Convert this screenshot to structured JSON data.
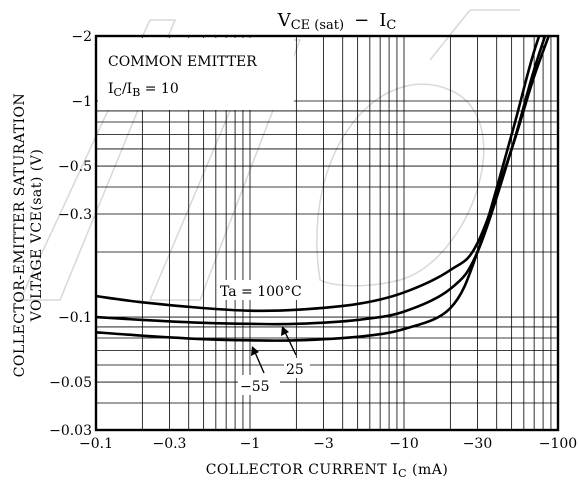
{
  "chart_data": {
    "type": "line",
    "title": "VCE (sat) − IC",
    "title_parts": {
      "a": "V",
      "a_sub": "CE (sat)",
      "dash": "−",
      "b": "I",
      "b_sub": "C"
    },
    "xlabel": "COLLECTOR   CURRENT   IC (mA)",
    "xlabel_parts": {
      "text": "COLLECTOR   CURRENT   I",
      "sub": "C",
      "unit": " (mA)"
    },
    "ylabel_line1": "COLLECTOR-EMITTER SATURATION",
    "ylabel_line2": "VOLTAGE   VCE(sat)   (V)",
    "x_scale": "log",
    "y_scale": "log",
    "xlim": [
      -0.1,
      -100
    ],
    "ylim": [
      -0.03,
      -2
    ],
    "grid": true,
    "x_ticks": [
      "-0.1",
      "-0.3",
      "-1",
      "-3",
      "-10",
      "-30",
      "-100"
    ],
    "y_ticks": [
      "-2",
      "-1",
      "-0.5",
      "-0.3",
      "-0.1",
      "-0.05",
      "-0.03"
    ],
    "annotations": {
      "common_emitter": "COMMON EMITTER",
      "ratio": "IC/IB = 10",
      "ratio_parts": {
        "a": "I",
        "a_sub": "C",
        "slash": "/I",
        "b_sub": "B",
        "rest": " = 10"
      },
      "ta_label": "Ta = 100°C",
      "label_25": "25",
      "label_m55": "−55"
    },
    "series": [
      {
        "name": "Ta = 100°C",
        "x": [
          -0.1,
          -0.2,
          -0.5,
          -1,
          -2,
          -5,
          -10,
          -20,
          -30,
          -50,
          -70,
          -100
        ],
        "y": [
          -0.125,
          -0.117,
          -0.11,
          -0.107,
          -0.108,
          -0.115,
          -0.13,
          -0.165,
          -0.22,
          -0.6,
          -1.3,
          -2.6
        ]
      },
      {
        "name": "25",
        "x": [
          -0.1,
          -0.2,
          -0.5,
          -1,
          -2,
          -5,
          -10,
          -20,
          -30,
          -50,
          -70,
          -100
        ],
        "y": [
          -0.1,
          -0.097,
          -0.094,
          -0.093,
          -0.093,
          -0.097,
          -0.106,
          -0.135,
          -0.2,
          -0.6,
          -1.4,
          -3.0
        ]
      },
      {
        "name": "−55",
        "x": [
          -0.1,
          -0.2,
          -0.5,
          -1,
          -2,
          -5,
          -10,
          -20,
          -30,
          -50,
          -70,
          -100
        ],
        "y": [
          -0.085,
          -0.082,
          -0.079,
          -0.078,
          -0.078,
          -0.081,
          -0.088,
          -0.11,
          -0.2,
          -0.7,
          -1.7,
          -3.5
        ]
      }
    ]
  }
}
